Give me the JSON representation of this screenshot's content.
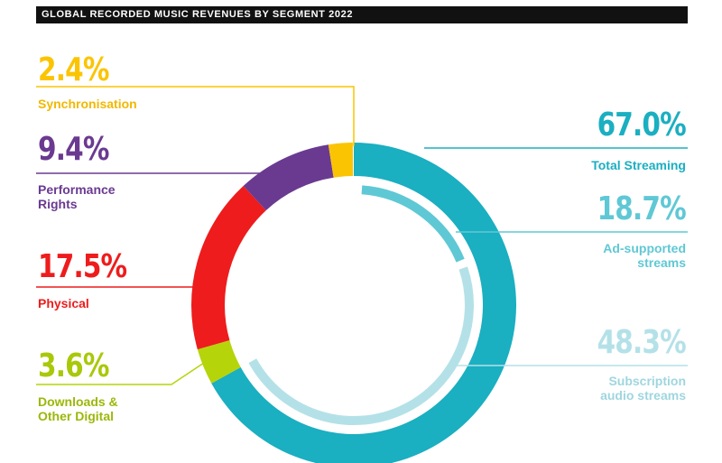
{
  "title": "GLOBAL RECORDED MUSIC REVENUES BY SEGMENT 2022",
  "chart_data": {
    "type": "pie",
    "title": "GLOBAL RECORDED MUSIC REVENUES BY SEGMENT 2022",
    "unit": "%",
    "segments": [
      {
        "label": "Total Streaming",
        "value": 67.0,
        "display": "67.0%",
        "color": "#1aafc1"
      },
      {
        "label": "Downloads & Other Digital",
        "value": 3.6,
        "display": "3.6%",
        "color": "#b6d40a"
      },
      {
        "label": "Physical",
        "value": 17.5,
        "display": "17.5%",
        "color": "#ee1c1c"
      },
      {
        "label": "Performance Rights",
        "value": 9.4,
        "display": "9.4%",
        "color": "#6a3a91"
      },
      {
        "label": "Synchronisation",
        "value": 2.4,
        "display": "2.4%",
        "color": "#fbc402"
      }
    ],
    "streaming_breakdown": [
      {
        "label": "Ad-supported streams",
        "value": 18.7,
        "display": "18.7%",
        "color": "#5fc8d5"
      },
      {
        "label": "Subscription audio streams",
        "value": 48.3,
        "display": "48.3%",
        "color": "#b4e1e8"
      }
    ]
  },
  "labels": {
    "sync": {
      "pct": "2.4%",
      "text": "Synchronisation"
    },
    "perf": {
      "pct": "9.4%",
      "text": "Performance\nRights"
    },
    "phys": {
      "pct": "17.5%",
      "text": "Physical"
    },
    "dl": {
      "pct": "3.6%",
      "text": "Downloads &\nOther Digital"
    },
    "stream": {
      "pct": "67.0%",
      "text": "Total Streaming"
    },
    "ad": {
      "pct": "18.7%",
      "text": "Ad-supported\nstreams"
    },
    "sub": {
      "pct": "48.3%",
      "text": "Subscription\naudio streams"
    }
  }
}
